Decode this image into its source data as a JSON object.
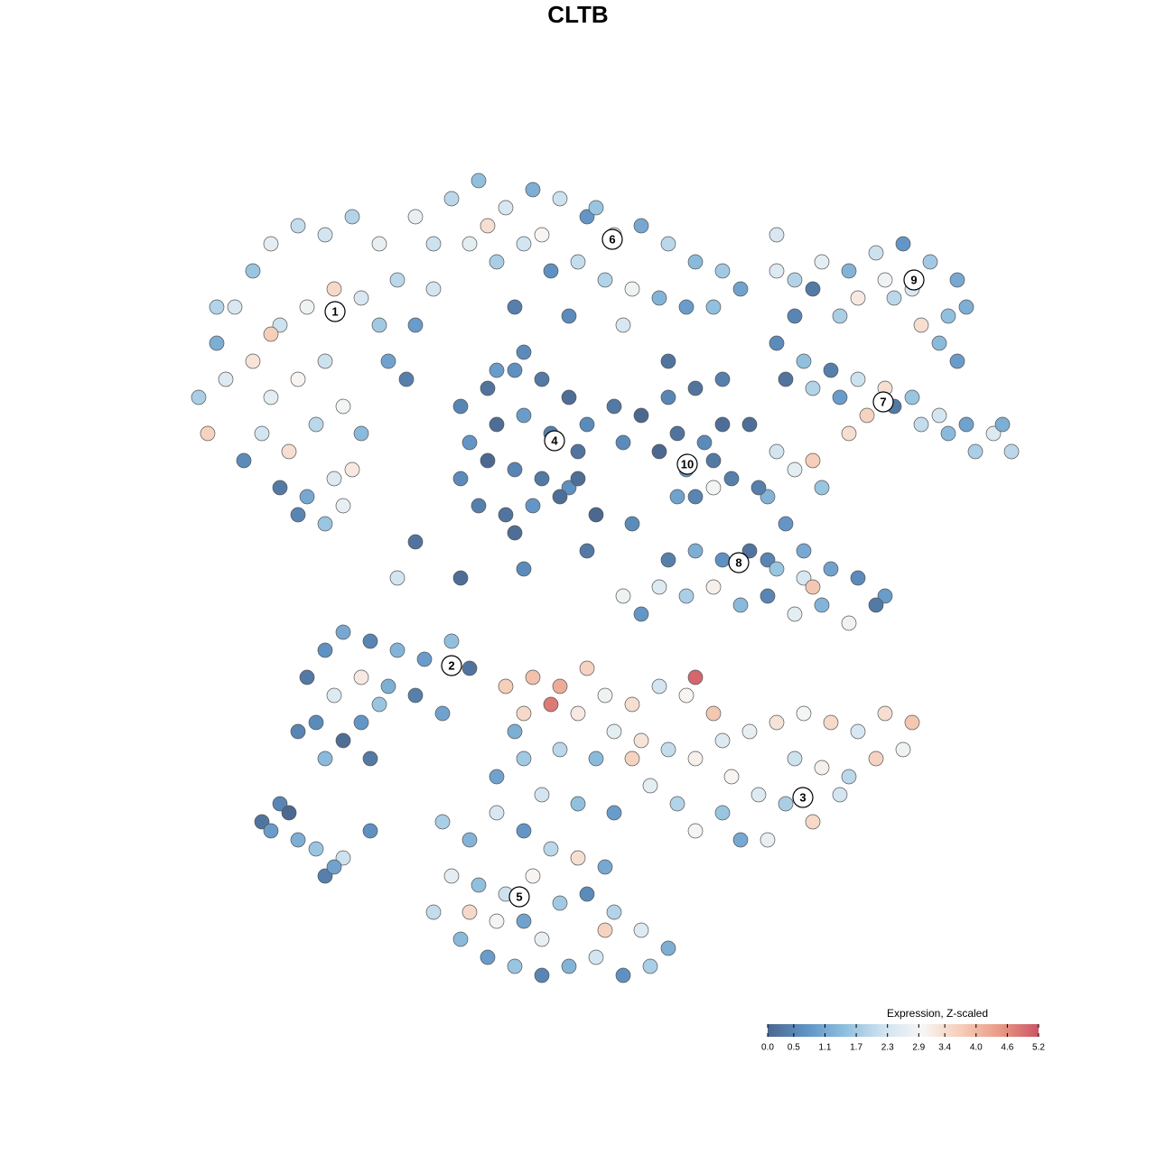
{
  "chart_data": {
    "type": "scatter",
    "title": "CLTB",
    "colorbar_label": "Expression, Z-scaled",
    "xlim": [
      20,
      113
    ],
    "ylim": [
      19,
      110
    ],
    "clim": [
      0,
      5.2
    ],
    "colormap": [
      "#4b6890",
      "#5f93c4",
      "#8fbfde",
      "#cfe3f0",
      "#f7f6f4",
      "#f6cdb8",
      "#e89a86",
      "#cd5464"
    ],
    "cticks": [
      {
        "value": 0,
        "label": "0.0"
      },
      0.5,
      1.1,
      1.7,
      2.3,
      2.9,
      3.4,
      {
        "value": 4,
        "label": "4.0"
      },
      4.6,
      5.2
    ],
    "x": [
      22,
      24,
      26,
      28,
      30,
      33,
      36,
      39,
      42,
      44,
      25,
      28,
      31,
      34,
      37,
      40,
      42,
      30,
      33,
      36,
      29,
      32,
      35,
      38,
      40,
      27,
      31,
      34,
      37,
      39,
      23,
      24,
      43,
      46,
      45,
      48,
      33,
      36,
      38,
      30,
      50,
      53,
      56,
      59,
      62,
      65,
      68,
      71,
      74,
      77,
      80,
      82,
      52,
      55,
      58,
      61,
      64,
      67,
      70,
      73,
      48,
      46,
      60,
      66,
      69,
      57,
      63,
      76,
      79,
      54,
      51,
      54,
      57,
      60,
      63,
      65,
      52,
      55,
      58,
      61,
      64,
      51,
      54,
      57,
      60,
      63,
      53,
      56,
      59,
      62,
      68,
      71,
      74,
      77,
      80,
      69,
      57,
      66,
      58,
      55,
      75,
      78,
      76,
      79,
      75,
      77,
      80,
      73,
      79,
      81,
      88,
      91,
      94,
      97,
      100,
      103,
      106,
      95,
      101,
      105,
      90,
      99,
      102,
      104,
      106,
      93,
      88,
      86,
      98,
      107,
      86,
      89,
      92,
      95,
      98,
      101,
      104,
      107,
      110,
      112,
      87,
      90,
      93,
      96,
      99,
      102,
      105,
      108,
      94,
      111,
      86,
      88,
      90,
      85,
      87,
      84,
      91,
      83,
      85,
      89,
      74,
      77,
      80,
      83,
      86,
      89,
      92,
      95,
      98,
      76,
      79,
      82,
      85,
      88,
      91,
      94,
      97,
      71,
      73,
      90,
      34,
      36,
      38,
      41,
      44,
      47,
      50,
      52,
      35,
      38,
      40,
      42,
      37,
      40,
      43,
      46,
      49,
      33,
      36,
      41,
      56,
      59,
      62,
      58,
      61,
      64,
      67,
      70,
      73,
      76,
      77,
      79,
      65,
      68,
      71,
      74,
      77,
      80,
      83,
      86,
      89,
      92,
      95,
      98,
      101,
      88,
      91,
      94,
      97,
      100,
      84,
      87,
      90,
      93,
      80,
      77,
      82,
      85,
      62,
      66,
      58,
      55,
      60,
      64,
      68,
      72,
      75,
      81,
      70,
      57,
      49,
      52,
      55,
      58,
      61,
      64,
      67,
      50,
      53,
      56,
      59,
      62,
      65,
      68,
      71,
      74,
      48,
      51,
      54,
      57,
      60,
      63,
      66,
      69,
      72,
      55,
      52,
      67,
      60,
      58,
      29,
      31,
      30,
      33,
      35,
      36,
      38,
      41,
      32,
      37,
      44,
      51,
      58,
      65,
      69,
      46,
      64,
      70,
      86,
      74
    ],
    "y": [
      84,
      90,
      94,
      98,
      101,
      103,
      102,
      104,
      101,
      97,
      86,
      88,
      92,
      94,
      96,
      95,
      92,
      84,
      86,
      88,
      80,
      78,
      81,
      83,
      80,
      77,
      74,
      73,
      75,
      76,
      80,
      94,
      88,
      92,
      86,
      96,
      71,
      70,
      72,
      91,
      106,
      108,
      105,
      107,
      106,
      104,
      102,
      103,
      101,
      99,
      98,
      96,
      101,
      99,
      101,
      98,
      99,
      97,
      96,
      95,
      101,
      104,
      102,
      105,
      92,
      94,
      93,
      94,
      94,
      103,
      83,
      85,
      87,
      86,
      84,
      81,
      79,
      81,
      82,
      80,
      78,
      75,
      77,
      76,
      75,
      74,
      72,
      71,
      72,
      73,
      83,
      82,
      84,
      85,
      86,
      79,
      69,
      71,
      89,
      87,
      80,
      79,
      76,
      77,
      73,
      73,
      81,
      78,
      74,
      75,
      97,
      99,
      98,
      100,
      101,
      99,
      97,
      95,
      96,
      93,
      96,
      95,
      92,
      90,
      88,
      93,
      93,
      98,
      97,
      94,
      90,
      88,
      87,
      86,
      85,
      84,
      82,
      81,
      80,
      78,
      86,
      85,
      84,
      82,
      83,
      81,
      80,
      78,
      80,
      81,
      78,
      76,
      77,
      73,
      70,
      74,
      74,
      81,
      66,
      67,
      66,
      67,
      66,
      67,
      65,
      64,
      65,
      64,
      62,
      62,
      63,
      61,
      62,
      60,
      61,
      59,
      61,
      60,
      63,
      63,
      53,
      56,
      58,
      57,
      56,
      55,
      57,
      54,
      48,
      46,
      48,
      50,
      51,
      53,
      52,
      51,
      49,
      47,
      44,
      44,
      52,
      53,
      52,
      49,
      50,
      49,
      51,
      50,
      52,
      51,
      53,
      49,
      54,
      47,
      46,
      45,
      44,
      46,
      47,
      48,
      49,
      48,
      47,
      49,
      48,
      44,
      43,
      42,
      44,
      45,
      40,
      39,
      37,
      40,
      38,
      36,
      35,
      35,
      45,
      44,
      44,
      42,
      40,
      39,
      38,
      41,
      39,
      42,
      44,
      47,
      37,
      35,
      38,
      36,
      34,
      33,
      32,
      31,
      30,
      29,
      31,
      28,
      29,
      27,
      25,
      23,
      27,
      24,
      22,
      21,
      20,
      21,
      22,
      20,
      21,
      26,
      27,
      25,
      24,
      26,
      37,
      39,
      36,
      35,
      34,
      31,
      33,
      36,
      38,
      32,
      64,
      64,
      65,
      67,
      62,
      68,
      75,
      70,
      102,
      88
    ],
    "values": [
      1.8,
      1.2,
      2.4,
      1.6,
      2.6,
      2.1,
      2.3,
      1.9,
      2.7,
      2.0,
      2.5,
      3.3,
      2.2,
      2.8,
      3.5,
      2.4,
      1.7,
      2.6,
      3.0,
      2.2,
      2.3,
      3.4,
      2.0,
      2.9,
      1.4,
      0.6,
      0.3,
      1.1,
      2.5,
      3.2,
      3.6,
      1.9,
      1.0,
      0.9,
      0.4,
      2.3,
      0.5,
      1.6,
      2.7,
      3.7,
      2.0,
      1.5,
      2.4,
      1.2,
      2.2,
      0.8,
      2.5,
      1.1,
      2.0,
      1.4,
      1.7,
      1.0,
      2.6,
      1.8,
      2.3,
      0.7,
      2.1,
      1.9,
      2.8,
      1.3,
      2.2,
      2.7,
      3.0,
      1.6,
      2.4,
      0.4,
      0.6,
      0.9,
      1.5,
      3.4,
      0.5,
      0.2,
      0.7,
      0.3,
      0.1,
      0.6,
      0.8,
      0.1,
      0.9,
      0.4,
      0.2,
      0.6,
      0.0,
      0.5,
      0.3,
      0.7,
      0.4,
      0.2,
      0.8,
      0.1,
      0.3,
      0.0,
      0.5,
      0.2,
      0.4,
      0.6,
      0.1,
      0.0,
      0.6,
      0.9,
      0.2,
      0.6,
      0.8,
      0.3,
      1.0,
      0.5,
      0.1,
      0.0,
      2.9,
      0.4,
      1.9,
      2.6,
      1.3,
      2.2,
      0.8,
      1.7,
      1.1,
      3.2,
      2.4,
      1.5,
      0.3,
      2.0,
      3.4,
      1.4,
      0.9,
      1.8,
      0.5,
      2.5,
      2.8,
      1.2,
      0.6,
      1.5,
      0.4,
      2.2,
      3.4,
      1.6,
      2.3,
      1.0,
      2.5,
      2.0,
      0.2,
      1.9,
      0.9,
      3.6,
      0.3,
      2.1,
      1.4,
      1.8,
      3.4,
      1.2,
      2.3,
      2.6,
      3.7,
      1.3,
      0.8,
      0.4,
      1.6,
      0.1,
      0.5,
      1.1,
      0.4,
      1.2,
      0.7,
      0.2,
      1.6,
      2.4,
      1.0,
      0.6,
      0.9,
      1.8,
      3.1,
      1.4,
      0.5,
      2.6,
      1.3,
      2.8,
      0.3,
      0.8,
      2.5,
      3.8,
      0.3,
      0.7,
      1.1,
      0.5,
      1.3,
      0.9,
      1.5,
      0.2,
      0.6,
      0.1,
      0.8,
      1.6,
      2.5,
      3.2,
      1.2,
      0.4,
      1.0,
      0.5,
      1.4,
      0.3,
      3.7,
      3.9,
      4.2,
      3.5,
      4.8,
      3.2,
      2.8,
      3.4,
      2.3,
      3.0,
      5.0,
      3.8,
      3.6,
      2.6,
      3.3,
      2.1,
      3.1,
      2.5,
      2.7,
      3.3,
      2.9,
      3.5,
      2.4,
      3.4,
      3.8,
      2.2,
      3.1,
      2.0,
      3.6,
      2.8,
      2.5,
      1.8,
      3.5,
      2.3,
      1.6,
      2.9,
      1.1,
      2.7,
      2.0,
      1.4,
      1.7,
      1.0,
      2.3,
      1.5,
      0.9,
      2.6,
      1.9,
      3.0,
      3.6,
      1.2,
      1.8,
      1.3,
      2.4,
      0.8,
      2.0,
      3.4,
      1.1,
      2.6,
      1.5,
      2.2,
      3.0,
      1.7,
      0.6,
      1.9,
      2.5,
      1.2,
      2.1,
      1.4,
      0.9,
      1.6,
      0.5,
      1.3,
      2.3,
      0.7,
      1.8,
      2.9,
      3.5,
      3.6,
      2.7,
      1.0,
      0.2,
      0.5,
      0.9,
      1.2,
      1.6,
      0.4,
      2.2,
      0.7,
      0.0,
      1.0,
      2.3,
      0.1,
      0.6,
      0.3,
      2.8,
      0.2,
      0.1,
      0.6,
      2.4,
      0.2
    ],
    "clusters": [
      {
        "label": "1",
        "x": 37.1,
        "y": 93.5
      },
      {
        "label": "2",
        "x": 50,
        "y": 54.3
      },
      {
        "label": "3",
        "x": 88.9,
        "y": 39.7
      },
      {
        "label": "4",
        "x": 61.4,
        "y": 79.2
      },
      {
        "label": "5",
        "x": 57.5,
        "y": 28.7
      },
      {
        "label": "6",
        "x": 67.8,
        "y": 101.5
      },
      {
        "label": "7",
        "x": 97.8,
        "y": 83.5
      },
      {
        "label": "8",
        "x": 81.8,
        "y": 65.7
      },
      {
        "label": "9",
        "x": 101.2,
        "y": 97
      },
      {
        "label": "10",
        "x": 76.1,
        "y": 76.6
      }
    ]
  }
}
